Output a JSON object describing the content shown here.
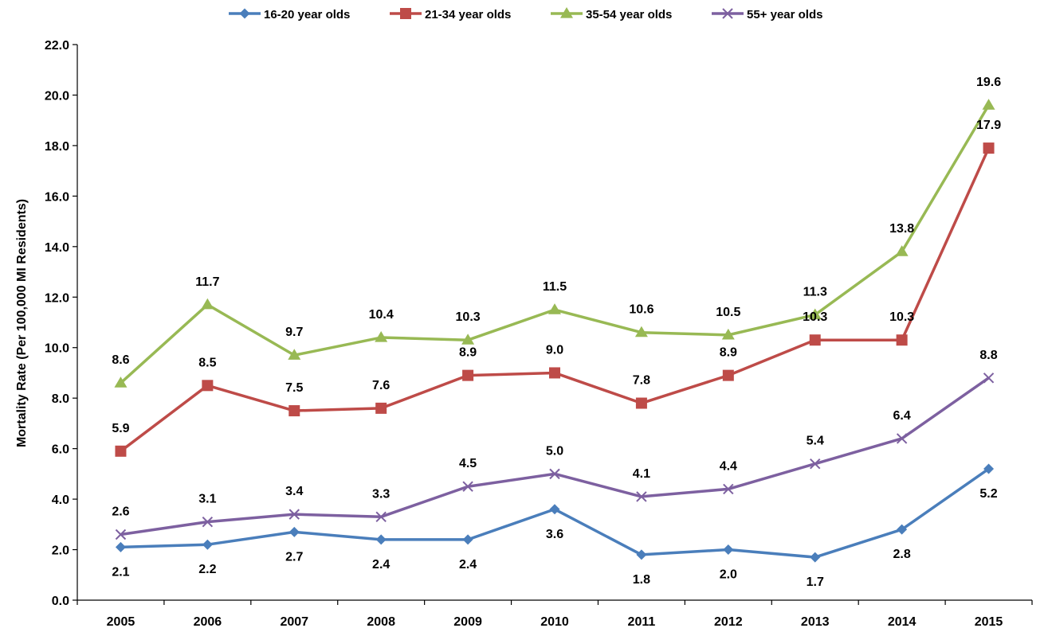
{
  "chart_data": {
    "type": "line",
    "title": "",
    "xlabel": "",
    "ylabel": "Mortality Rate (Per 100,000 MI Residents)",
    "x": [
      "2005",
      "2006",
      "2007",
      "2008",
      "2009",
      "2010",
      "2011",
      "2012",
      "2013",
      "2014",
      "2015"
    ],
    "ylim": [
      0,
      22
    ],
    "yticks": [
      "0.0",
      "2.0",
      "4.0",
      "6.0",
      "8.0",
      "10.0",
      "12.0",
      "14.0",
      "16.0",
      "18.0",
      "20.0",
      "22.0"
    ],
    "grid": false,
    "legend_position": "top",
    "series": [
      {
        "name": "16-20 year olds",
        "marker": "diamond",
        "color": "#4a7ebb",
        "values": [
          2.1,
          2.2,
          2.7,
          2.4,
          2.4,
          3.6,
          1.8,
          2.0,
          1.7,
          2.8,
          5.2
        ],
        "labels": [
          "2.1",
          "2.2",
          "2.7",
          "2.4",
          "2.4",
          "3.6",
          "1.8",
          "2.0",
          "1.7",
          "2.8",
          "5.2"
        ],
        "label_position": "below"
      },
      {
        "name": "21-34 year olds",
        "marker": "square",
        "color": "#be4b48",
        "values": [
          5.9,
          8.5,
          7.5,
          7.6,
          8.9,
          9.0,
          7.8,
          8.9,
          10.3,
          10.3,
          17.9
        ],
        "labels": [
          "5.9",
          "8.5",
          "7.5",
          "7.6",
          "8.9",
          "9.0",
          "7.8",
          "8.9",
          "10.3",
          "10.3",
          "17.9"
        ],
        "label_position": "above"
      },
      {
        "name": "35-54 year olds",
        "marker": "triangle",
        "color": "#98b954",
        "values": [
          8.6,
          11.7,
          9.7,
          10.4,
          10.3,
          11.5,
          10.6,
          10.5,
          11.3,
          13.8,
          19.6
        ],
        "labels": [
          "8.6",
          "11.7",
          "9.7",
          "10.4",
          "10.3",
          "11.5",
          "10.6",
          "10.5",
          "11.3",
          "13.8",
          "19.6"
        ],
        "label_position": "above"
      },
      {
        "name": "55+ year olds",
        "marker": "x",
        "color": "#7d60a0",
        "values": [
          2.6,
          3.1,
          3.4,
          3.3,
          4.5,
          5.0,
          4.1,
          4.4,
          5.4,
          6.4,
          8.8
        ],
        "labels": [
          "2.6",
          "3.1",
          "3.4",
          "3.3",
          "4.5",
          "5.0",
          "4.1",
          "4.4",
          "5.4",
          "6.4",
          "8.8"
        ],
        "label_position": "above"
      }
    ]
  }
}
